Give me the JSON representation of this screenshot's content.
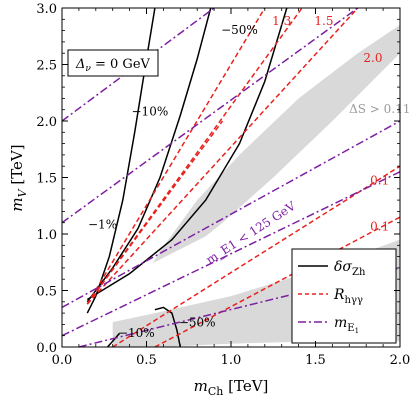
{
  "chart_data": {
    "type": "line",
    "xlabel": "m_Ch [TeV]",
    "ylabel": "m_V [TeV]",
    "xlim": [
      0,
      2.0
    ],
    "ylim": [
      0,
      3.0
    ],
    "xticks": [
      0,
      0.5,
      1.0,
      1.5,
      2.0
    ],
    "xtick_labels": [
      "0.0",
      "0.5",
      "1.0",
      "1.5",
      "2.0"
    ],
    "yticks": [
      0,
      0.5,
      1.0,
      1.5,
      2.0,
      2.5,
      3.0
    ],
    "ytick_labels": [
      "0.0",
      "0.5",
      "1.0",
      "1.5",
      "2.0",
      "2.5",
      "3.0"
    ],
    "parameter_box": "Δ_ν = 0 GeV",
    "shaded_regions": [
      {
        "label": "ΔS > 0.11",
        "color": "#d9d9d9",
        "polygon": [
          [
            0.48,
            0.45
          ],
          [
            0.7,
            0.8
          ],
          [
            0.95,
            1.1
          ],
          [
            1.25,
            1.5
          ],
          [
            1.6,
            2.0
          ],
          [
            1.9,
            2.45
          ],
          [
            2.0,
            2.6
          ],
          [
            2.0,
            2.85
          ],
          [
            1.75,
            2.6
          ],
          [
            1.4,
            2.2
          ],
          [
            1.05,
            1.7
          ],
          [
            0.8,
            1.3
          ],
          [
            0.58,
            0.85
          ],
          [
            0.46,
            0.55
          ]
        ]
      },
      {
        "label": "",
        "color": "#d9d9d9",
        "polygon": [
          [
            0.3,
            0.0
          ],
          [
            0.3,
            0.22
          ],
          [
            0.55,
            0.3
          ],
          [
            1.0,
            0.45
          ],
          [
            1.5,
            0.68
          ],
          [
            2.0,
            0.95
          ],
          [
            2.0,
            0.05
          ],
          [
            1.5,
            0.05
          ],
          [
            1.0,
            0.03
          ],
          [
            0.6,
            0.0
          ]
        ]
      },
      {
        "label": "m_E1 < 125 GeV",
        "color": "#ffffff",
        "polygon": [
          [
            0.15,
            0.45
          ],
          [
            2.0,
            1.85
          ],
          [
            2.0,
            1.4
          ],
          [
            0.15,
            0.18
          ]
        ]
      }
    ],
    "series": [
      {
        "name": "δσ_Zh",
        "color": "#000000",
        "style": "solid",
        "legend_label": "δσ_Zh",
        "curves": [
          {
            "label": "−1%",
            "points": [
              [
                0.15,
                0.3
              ],
              [
                0.2,
                0.45
              ],
              [
                0.28,
                0.8
              ],
              [
                0.36,
                1.3
              ],
              [
                0.43,
                1.9
              ],
              [
                0.5,
                2.55
              ],
              [
                0.55,
                3.0
              ]
            ]
          },
          {
            "label": "−10%",
            "points": [
              [
                0.15,
                0.4
              ],
              [
                0.3,
                0.7
              ],
              [
                0.45,
                1.05
              ],
              [
                0.58,
                1.5
              ],
              [
                0.7,
                2.05
              ],
              [
                0.8,
                2.55
              ],
              [
                0.88,
                3.0
              ]
            ]
          },
          {
            "label": "−50%",
            "points": [
              [
                0.15,
                0.42
              ],
              [
                0.4,
                0.65
              ],
              [
                0.65,
                0.95
              ],
              [
                0.85,
                1.3
              ],
              [
                1.05,
                1.8
              ],
              [
                1.2,
                2.35
              ],
              [
                1.33,
                3.0
              ]
            ]
          },
          {
            "label": "−10%",
            "points": [
              [
                0.27,
                0.0
              ],
              [
                0.34,
                0.12
              ]
            ]
          },
          {
            "label": "−50%",
            "points": [
              [
                0.55,
                0.33
              ],
              [
                0.6,
                0.35
              ],
              [
                0.65,
                0.3
              ],
              [
                0.68,
                0.15
              ],
              [
                0.7,
                0.0
              ]
            ]
          }
        ]
      },
      {
        "name": "R_hγγ",
        "color": "#e8231f",
        "style": "dashed",
        "legend_label": "R_hγγ",
        "curves": [
          {
            "label": "1.3",
            "points": [
              [
                0.15,
                0.38
              ],
              [
                1.2,
                3.0
              ]
            ]
          },
          {
            "label": "1.5",
            "points": [
              [
                0.15,
                0.38
              ],
              [
                1.42,
                3.0
              ]
            ]
          },
          {
            "label": "2.0",
            "points": [
              [
                0.15,
                0.38
              ],
              [
                1.75,
                3.0
              ]
            ]
          },
          {
            "label": "",
            "points": [
              [
                0.15,
                0.38
              ],
              [
                0.95,
                2.0
              ]
            ]
          },
          {
            "label": "0.1",
            "points": [
              [
                0.3,
                0.0
              ],
              [
                2.0,
                1.6
              ]
            ]
          },
          {
            "label": "0.1",
            "points": [
              [
                0.55,
                0.0
              ],
              [
                2.0,
                1.15
              ]
            ]
          }
        ]
      },
      {
        "name": "m_E1",
        "color": "#7d1fa0",
        "style": "dashdot",
        "legend_label": "m_E1",
        "curves": [
          {
            "label": "",
            "points": [
              [
                0.0,
                2.0
              ],
              [
                0.9,
                3.0
              ]
            ]
          },
          {
            "label": "",
            "points": [
              [
                0.0,
                1.1
              ],
              [
                1.75,
                3.0
              ]
            ]
          },
          {
            "label": "",
            "points": [
              [
                0.0,
                0.35
              ],
              [
                2.0,
                2.0
              ]
            ]
          },
          {
            "label": "",
            "points": [
              [
                0.0,
                0.1
              ],
              [
                2.0,
                1.55
              ]
            ]
          },
          {
            "label": "",
            "points": [
              [
                0.1,
                0.0
              ],
              [
                2.0,
                0.7
              ]
            ]
          }
        ]
      }
    ],
    "annotations": [
      {
        "text": "−50%",
        "x": 1.05,
        "y": 2.77,
        "color": "#000000",
        "rotate": 0
      },
      {
        "text": "−10%",
        "x": 0.52,
        "y": 2.05,
        "color": "#000000",
        "rotate": 0
      },
      {
        "text": "−1%",
        "x": 0.24,
        "y": 1.05,
        "color": "#000000",
        "rotate": 0
      },
      {
        "text": "1.3",
        "x": 1.3,
        "y": 2.85,
        "color": "#e8231f",
        "rotate": 0
      },
      {
        "text": "1.5",
        "x": 1.55,
        "y": 2.85,
        "color": "#e8231f",
        "rotate": 0
      },
      {
        "text": "2.0",
        "x": 1.84,
        "y": 2.52,
        "color": "#e8231f",
        "rotate": 0
      },
      {
        "text": "ΔS > 0.11",
        "x": 1.88,
        "y": 2.07,
        "color": "#9a9a9a",
        "rotate": 0
      },
      {
        "text": "0.1",
        "x": 1.88,
        "y": 1.44,
        "color": "#e8231f",
        "rotate": 0
      },
      {
        "text": "0.1",
        "x": 1.88,
        "y": 1.03,
        "color": "#e8231f",
        "rotate": 0
      },
      {
        "text": "−10%",
        "x": 0.44,
        "y": 0.09,
        "color": "#000000",
        "rotate": 0
      },
      {
        "text": "−50%",
        "x": 0.8,
        "y": 0.18,
        "color": "#000000",
        "rotate": 0
      },
      {
        "text": "m_E1 < 125 GeV",
        "x": 1.13,
        "y": 0.98,
        "color": "#7d1fa0",
        "rotate": -33
      }
    ],
    "legend": {
      "placement": "bottom-right"
    }
  }
}
